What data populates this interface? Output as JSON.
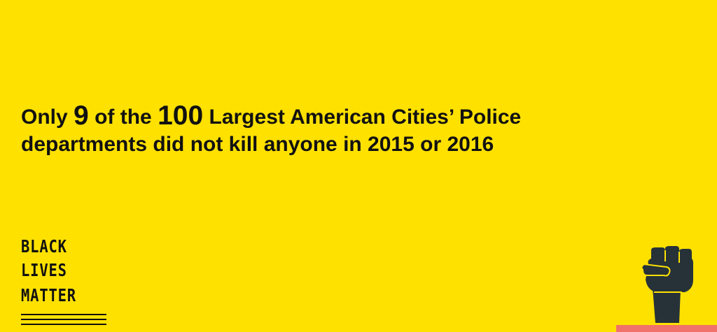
{
  "background_color": "#FFE100",
  "text_color": "#111111",
  "accent_bar_color": "#F0726A",
  "headline": {
    "line1": {
      "part1": "Only",
      "number1": "9",
      "part2": "of the",
      "number2": "100",
      "part3": "Largest American Cities’ Police"
    },
    "line2": "departments did not kill anyone in 2015 or 2016"
  },
  "logo": {
    "word1": "BLACK",
    "word2": "LIVES",
    "word3": "MATTER"
  },
  "icons": {
    "fist": "raised-fist-icon"
  }
}
